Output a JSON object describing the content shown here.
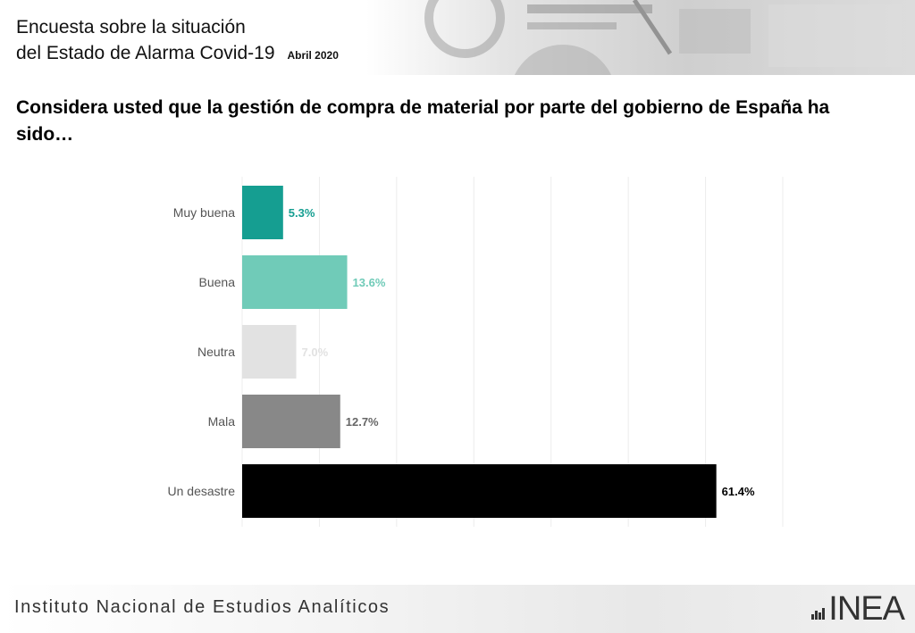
{
  "header": {
    "title_line1": "Encuesta sobre la situación",
    "title_line2": "del Estado de Alarma Covid-19",
    "date": "Abril 2020"
  },
  "question": "Considera usted que la gestión de compra de material por parte del gobierno de España ha sido…",
  "chart_data": {
    "type": "bar",
    "orientation": "horizontal",
    "categories": [
      "Muy buena",
      "Buena",
      "Neutra",
      "Mala",
      "Un desastre"
    ],
    "values": [
      5.3,
      13.6,
      7.0,
      12.7,
      61.4
    ],
    "labels": [
      "5.3%",
      "13.6%",
      "7.0%",
      "12.7%",
      "61.4%"
    ],
    "colors": [
      "#159e91",
      "#70cbb8",
      "#e2e2e2",
      "#888888",
      "#000000"
    ],
    "label_colors": [
      "#159e91",
      "#70cbb8",
      "#e2e2e2",
      "#666666",
      "#000000"
    ],
    "xlim": [
      0,
      70
    ],
    "grid": true,
    "unit": "%"
  },
  "footer": {
    "institute": "Instituto Nacional de Estudios Analíticos",
    "logo": "INEA"
  }
}
